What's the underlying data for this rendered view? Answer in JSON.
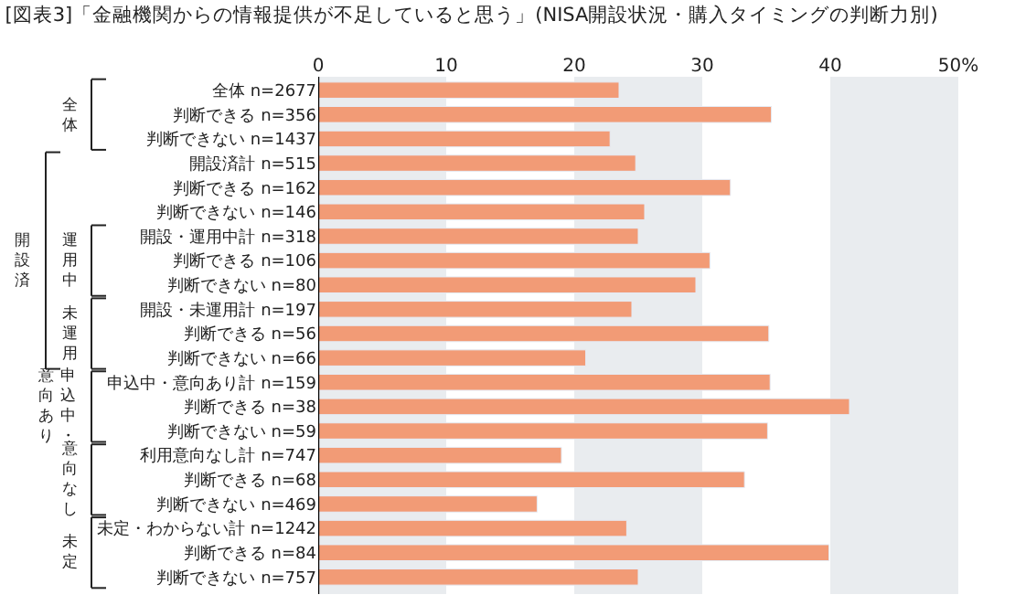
{
  "chart_data": {
    "type": "bar",
    "orientation": "horizontal",
    "title": "[図表3]「金融機関からの情報提供が不足していると思う」(NISA開設状況・購入タイミングの判断力別)",
    "categories": [
      "全体 n=2677",
      "判断できる n=356",
      "判断できない n=1437",
      "開設済計 n=515",
      "判断できる n=162",
      "判断できない n=146",
      "開設・運用中計 n=318",
      "判断できる n=106",
      "判断できない n=80",
      "開設・未運用計 n=197",
      "判断できる n=56",
      "判断できない n=66",
      "申込中・意向あり計 n=159",
      "判断できる n=38",
      "判断できない n=59",
      "利用意向なし計 n=747",
      "判断できる n=68",
      "判断できない n=469",
      "未定・わからない計 n=1242",
      "判断できる n=84",
      "判断できない n=757"
    ],
    "values": [
      23.5,
      35.4,
      22.8,
      24.8,
      32.2,
      25.5,
      25.0,
      30.6,
      29.5,
      24.5,
      35.2,
      20.9,
      35.3,
      41.5,
      35.1,
      19.0,
      33.3,
      17.1,
      24.1,
      39.9,
      25.0
    ],
    "color": "#f29b76",
    "xlim": [
      0,
      50
    ],
    "xticks": [
      0,
      10,
      20,
      30,
      40,
      {
        "value": 50,
        "label": "50%"
      }
    ],
    "bands": [
      {
        "axis": "x",
        "from": 0,
        "to": 10,
        "color": "#e9ecef"
      },
      {
        "axis": "x",
        "from": 20,
        "to": 30,
        "color": "#e9ecef"
      },
      {
        "axis": "x",
        "from": 40,
        "to": 50,
        "color": "#e9ecef"
      }
    ],
    "annotations": [
      "全体",
      "開設済",
      "運用中",
      "未運用",
      "申込中・",
      "意向あり",
      "意向なし",
      "未定"
    ]
  }
}
